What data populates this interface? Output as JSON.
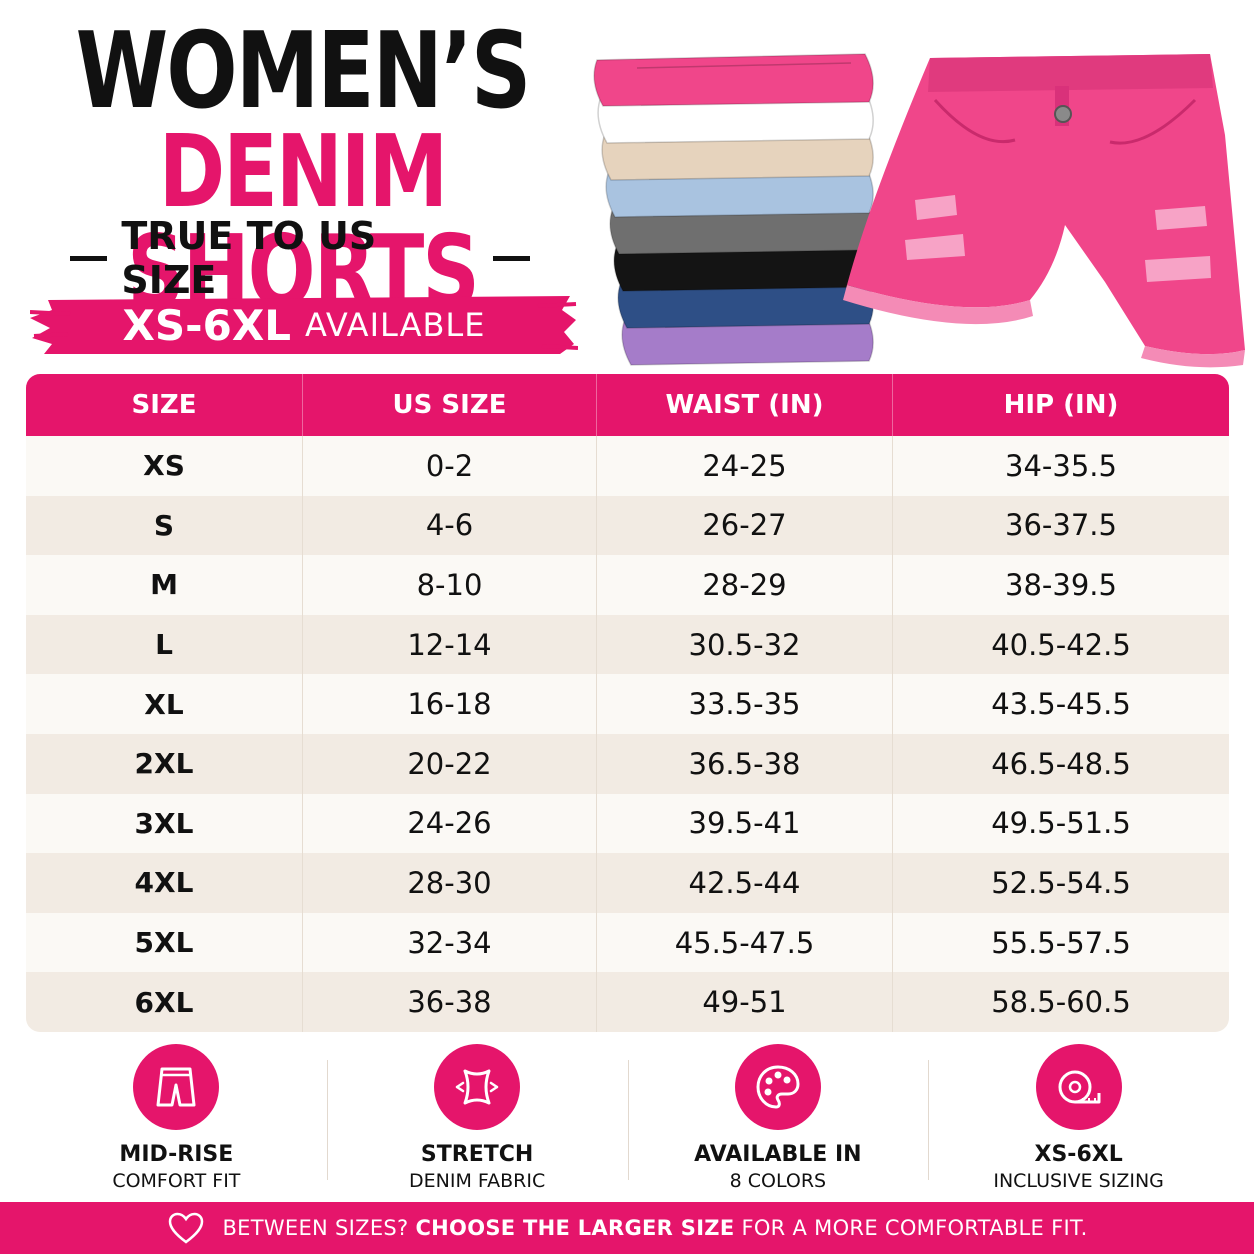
{
  "header": {
    "title_line1": "WOMEN’S",
    "title_line2": "DENIM SHORTS",
    "subtitle": "TRUE TO US SIZE",
    "banner_range": "XS-6XL",
    "banner_suffix": "AVAILABLE"
  },
  "colors": {
    "accent_pink": "#e5156b",
    "dark": "#111111",
    "row_light": "#fbf9f5",
    "row_dark": "#f2ebe3"
  },
  "size_table": {
    "headers": [
      "SIZE",
      "US SIZE",
      "WAIST (IN)",
      "HIP (IN)"
    ],
    "rows": [
      [
        "XS",
        "0-2",
        "24-25",
        "34-35.5"
      ],
      [
        "S",
        "4-6",
        "26-27",
        "36-37.5"
      ],
      [
        "M",
        "8-10",
        "28-29",
        "38-39.5"
      ],
      [
        "L",
        "12-14",
        "30.5-32",
        "40.5-42.5"
      ],
      [
        "XL",
        "16-18",
        "33.5-35",
        "43.5-45.5"
      ],
      [
        "2XL",
        "20-22",
        "36.5-38",
        "46.5-48.5"
      ],
      [
        "3XL",
        "24-26",
        "39.5-41",
        "49.5-51.5"
      ],
      [
        "4XL",
        "28-30",
        "42.5-44",
        "52.5-54.5"
      ],
      [
        "5XL",
        "32-34",
        "45.5-47.5",
        "55.5-57.5"
      ],
      [
        "6XL",
        "36-38",
        "49-51",
        "58.5-60.5"
      ]
    ]
  },
  "features": [
    {
      "icon": "shorts-icon",
      "title": "MID-RISE",
      "subtitle": "COMFORT FIT"
    },
    {
      "icon": "stretch-icon",
      "title": "STRETCH",
      "subtitle": "DENIM FABRIC"
    },
    {
      "icon": "palette-icon",
      "title": "AVAILABLE IN",
      "subtitle": "8 COLORS"
    },
    {
      "icon": "tape-measure-icon",
      "title": "XS-6XL",
      "subtitle": "INCLUSIVE SIZING"
    }
  ],
  "footer": {
    "icon": "heart-icon",
    "lead": "BETWEEN SIZES?",
    "bold": "CHOOSE THE LARGER SIZE",
    "tail": "FOR A MORE COMFORTABLE FIT."
  },
  "product_colors": [
    "#f0468a",
    "#ffffff",
    "#e6d3bd",
    "#a9c3e0",
    "#6f6f6f",
    "#141414",
    "#2e4f86",
    "#a57cc9"
  ]
}
